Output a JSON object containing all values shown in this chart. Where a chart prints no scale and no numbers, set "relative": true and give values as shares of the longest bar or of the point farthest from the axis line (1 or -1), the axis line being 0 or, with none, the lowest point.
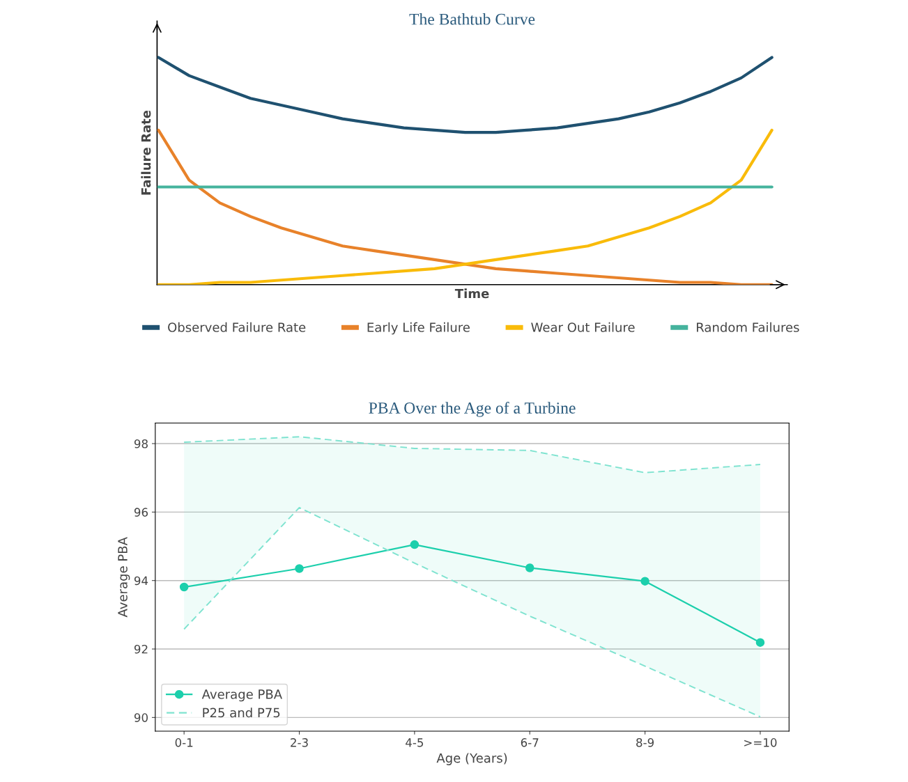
{
  "chart_data": [
    {
      "type": "line",
      "title": "The Bathtub Curve",
      "xlabel": "Time",
      "ylabel": "Failure Rate",
      "relative": true,
      "legend": "bottom",
      "grid": false,
      "categories": [
        null,
        null,
        null,
        null,
        null,
        null,
        null,
        null,
        null,
        null,
        null,
        null,
        null,
        null,
        null,
        null,
        null,
        null,
        null,
        null,
        null
      ],
      "series": [
        {
          "name": "Observed Failure Rate",
          "color": "#1f5170",
          "values": [
            1.0,
            0.92,
            0.87,
            0.82,
            0.79,
            0.76,
            0.73,
            0.71,
            0.69,
            0.68,
            0.67,
            0.67,
            0.68,
            0.69,
            0.71,
            0.73,
            0.76,
            0.8,
            0.85,
            0.91,
            1.0
          ]
        },
        {
          "name": "Early Life Failure",
          "color": "#e8822a",
          "values": [
            0.68,
            0.46,
            0.36,
            0.3,
            0.25,
            0.21,
            0.17,
            0.15,
            0.13,
            0.11,
            0.09,
            0.07,
            0.06,
            0.05,
            0.04,
            0.03,
            0.02,
            0.01,
            0.01,
            0.0,
            0.0
          ]
        },
        {
          "name": "Wear Out Failure",
          "color": "#f9bb0a",
          "values": [
            0.0,
            0.0,
            0.01,
            0.01,
            0.02,
            0.03,
            0.04,
            0.05,
            0.06,
            0.07,
            0.09,
            0.11,
            0.13,
            0.15,
            0.17,
            0.21,
            0.25,
            0.3,
            0.36,
            0.46,
            0.68
          ]
        },
        {
          "name": "Random Failures",
          "color": "#45b39d",
          "values": [
            0.43,
            0.43,
            0.43,
            0.43,
            0.43,
            0.43,
            0.43,
            0.43,
            0.43,
            0.43,
            0.43,
            0.43,
            0.43,
            0.43,
            0.43,
            0.43,
            0.43,
            0.43,
            0.43,
            0.43,
            0.43
          ]
        }
      ]
    },
    {
      "type": "line",
      "title": "PBA Over the Age of a Turbine",
      "xlabel": "Age (Years)",
      "ylabel": "Average PBA",
      "legend": "bottom left",
      "grid": "y",
      "categories": [
        "0-1",
        "2-3",
        "4-5",
        "6-7",
        "8-9",
        ">=10"
      ],
      "ylim": [
        89.6,
        98.6
      ],
      "yticks": [
        90,
        92,
        94,
        96,
        98
      ],
      "series": [
        {
          "name": "Average PBA",
          "color": "#1ccfac",
          "marker": "circle",
          "line_style": "solid",
          "values": [
            93.81,
            94.35,
            95.05,
            94.37,
            93.98,
            92.19
          ]
        },
        {
          "name": "P25 and P75",
          "color": "#7fe3d0",
          "line_style": "dashed",
          "values": [
            92.58,
            96.13,
            94.51,
            92.96,
            91.5,
            90.02
          ],
          "lower": [
            92.58,
            96.13,
            94.51,
            92.96,
            91.5,
            90.02
          ],
          "upper": [
            98.04,
            98.2,
            97.86,
            97.8,
            97.15,
            97.39
          ]
        },
        {
          "color": "#7fe3d0",
          "line_style": "dashed",
          "values": [
            98.04,
            98.2,
            97.86,
            97.8,
            97.15,
            97.39
          ]
        }
      ]
    }
  ]
}
